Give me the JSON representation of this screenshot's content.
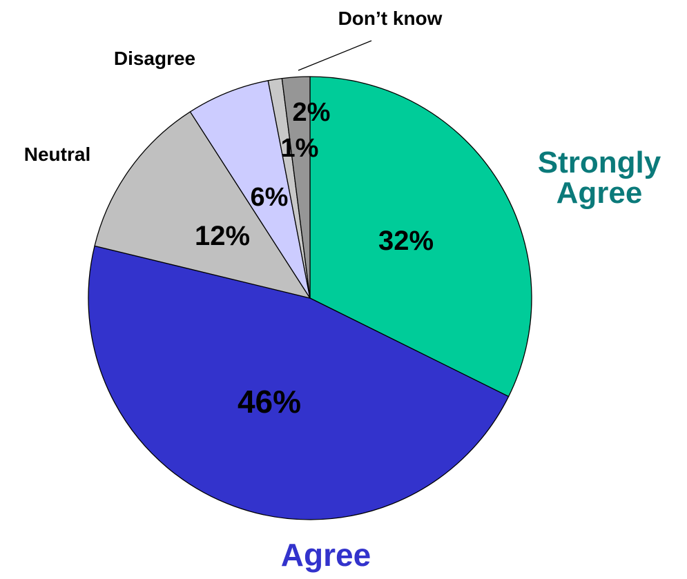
{
  "chart_data": {
    "type": "pie",
    "title": "",
    "slices": [
      {
        "label": "Strongly Agree",
        "label_lines": [
          "Strongly",
          "Agree"
        ],
        "value": 32,
        "value_label": "32%",
        "color": "#00cc99",
        "label_color": "#0b7a7a"
      },
      {
        "label": "Agree",
        "label_lines": [
          "Agree"
        ],
        "value": 46,
        "value_label": "46%",
        "color": "#3333cc",
        "label_color": "#3333cc"
      },
      {
        "label": "Neutral",
        "label_lines": [
          "Neutral"
        ],
        "value": 12,
        "value_label": "12%",
        "color": "#c0c0c0",
        "label_color": "#000000"
      },
      {
        "label": "Disagree",
        "label_lines": [
          "Disagree"
        ],
        "value": 6,
        "value_label": "6%",
        "color": "#ccccff",
        "label_color": "#000000"
      },
      {
        "label": "Disagree",
        "label_lines": [],
        "value": 1,
        "value_label": "1%",
        "color": "#c8c8c8",
        "label_color": "#000000"
      },
      {
        "label": "Don’t know",
        "label_lines": [
          "Don’t know"
        ],
        "value": 2,
        "value_label": "2%",
        "color": "#969696",
        "label_color": "#000000"
      }
    ]
  }
}
